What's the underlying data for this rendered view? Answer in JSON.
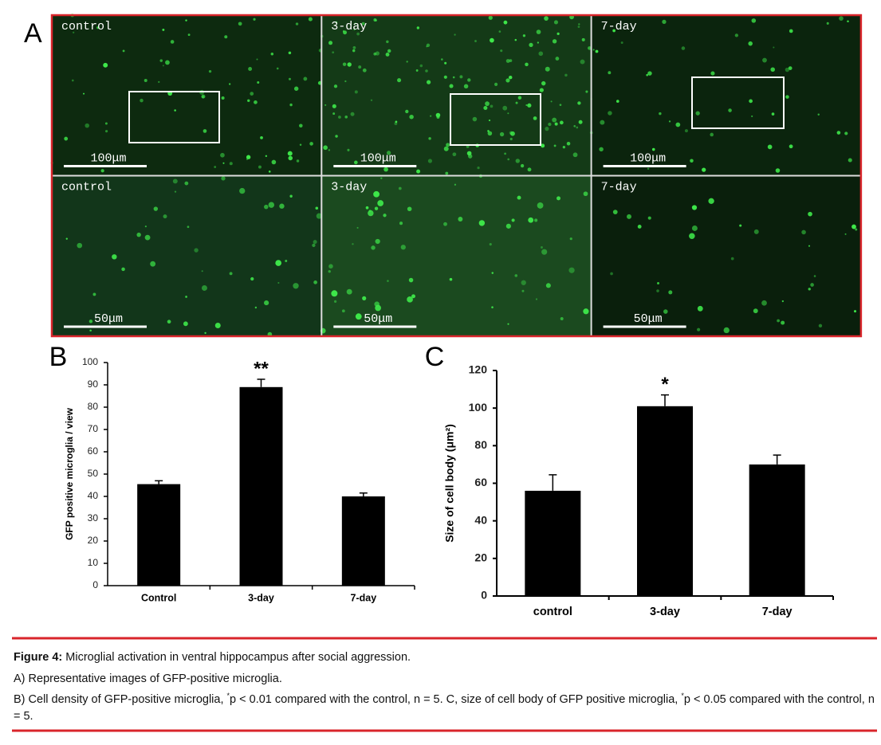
{
  "panel_a": {
    "label": "A",
    "images": [
      {
        "label": "control",
        "scale": "100μm"
      },
      {
        "label": "3-day",
        "scale": "100μm"
      },
      {
        "label": "7-day",
        "scale": "100μm"
      },
      {
        "label": "control",
        "scale": "50μm"
      },
      {
        "label": "3-day",
        "scale": "50μm"
      },
      {
        "label": "7-day",
        "scale": "50μm"
      }
    ]
  },
  "chart_data": [
    {
      "type": "bar",
      "panel_label": "B",
      "ylabel": "GFP positive microglia / view",
      "categories": [
        "Control",
        "3-day",
        "7-day"
      ],
      "values": [
        45.5,
        89,
        40
      ],
      "errors": [
        1.5,
        3.5,
        1.5
      ],
      "value_annotations": [
        null,
        "**",
        null
      ],
      "color": "#000000",
      "ylim": [
        0,
        100
      ],
      "yticks": [
        0,
        10,
        20,
        30,
        40,
        50,
        60,
        70,
        80,
        90,
        100
      ]
    },
    {
      "type": "bar",
      "panel_label": "C",
      "ylabel": "Size of cell body (μm²)",
      "categories": [
        "control",
        "3-day",
        "7-day"
      ],
      "values": [
        56,
        101,
        70
      ],
      "errors": [
        8.5,
        6,
        5
      ],
      "value_annotations": [
        null,
        "*",
        null
      ],
      "color": "#000000",
      "ylim": [
        0,
        120
      ],
      "yticks": [
        0,
        20,
        40,
        60,
        80,
        100,
        120
      ]
    }
  ],
  "caption": {
    "label": "Figure 4:",
    "title": "Microglial activation in ventral hippocampus after social aggression.",
    "line_a": "A) Representative images of GFP-positive microglia.",
    "line_b": [
      "B) Cell density of GFP-positive microglia, ",
      "*",
      "p < 0.01 compared with the control, n = 5. C, size of cell body of GFP positive microglia, ",
      "*",
      "p < 0.05 compared with the control, n = 5."
    ]
  }
}
